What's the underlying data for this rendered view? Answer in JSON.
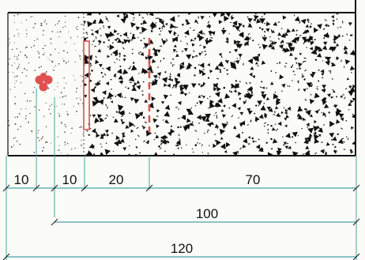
{
  "diagram": {
    "dimensions": {
      "row1": [
        "10",
        "10",
        "20",
        "70"
      ],
      "row2": "100",
      "row3": "120"
    },
    "colors": {
      "outline": "#111111",
      "dimension_line": "#4aa3a8",
      "rebar": "#e05050",
      "insulation_board": "#d9534f",
      "background": "#fbfbf8"
    },
    "icons": {
      "rebar": "rebar-cluster-icon"
    }
  }
}
